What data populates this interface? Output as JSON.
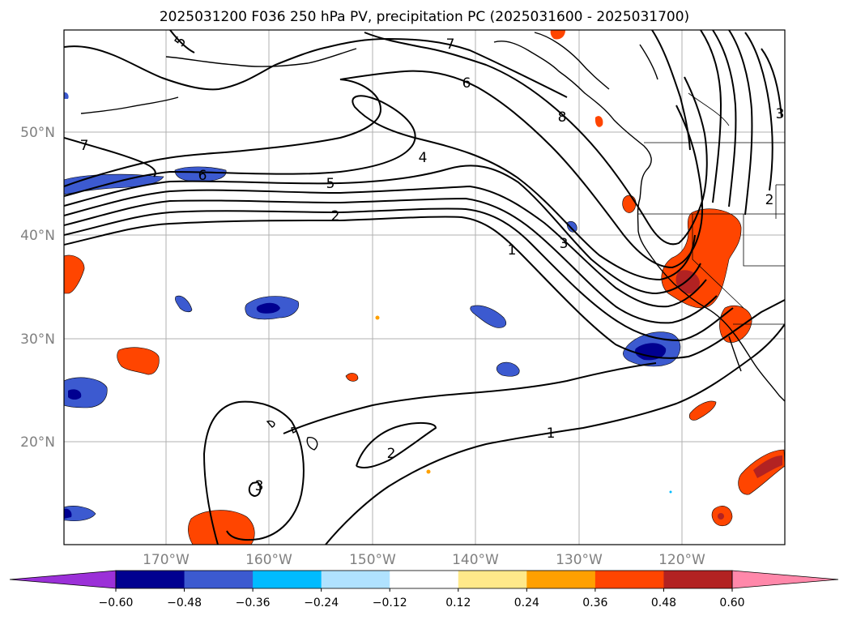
{
  "title": "2025031200 F036 250 hPa PV, precipitation PC (2025031600 - 2025031700)",
  "lat_labels": [
    "50°N",
    "40°N",
    "30°N",
    "20°N"
  ],
  "lon_labels": [
    "170°W",
    "160°W",
    "150°W",
    "140°W",
    "130°W",
    "120°W"
  ],
  "colorbar": {
    "ticks": [
      "−0.60",
      "−0.48",
      "−0.36",
      "−0.24",
      "−0.12",
      "0.12",
      "0.24",
      "0.36",
      "0.48",
      "0.60"
    ],
    "colors": [
      "#9b30d8",
      "#000090",
      "#3c5ad0",
      "#00bbff",
      "#b0e2ff",
      "#ffffff",
      "#ffe98a",
      "#ffa000",
      "#ff4500",
      "#b22222",
      "#ff88aa"
    ]
  },
  "contour_labels": [
    "5",
    "7",
    "6",
    "4",
    "8",
    "5",
    "2",
    "7",
    "6",
    "1",
    "3",
    "3",
    "2",
    "1",
    "2",
    "3"
  ]
}
